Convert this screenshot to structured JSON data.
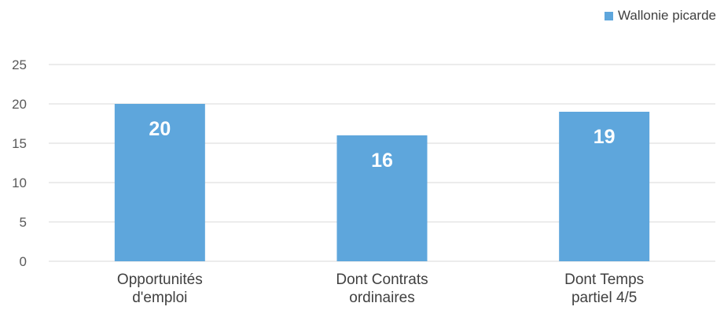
{
  "chart_data": {
    "type": "bar",
    "categories": [
      [
        "Opportunités",
        "d'emploi"
      ],
      [
        "Dont Contrats",
        "ordinaires"
      ],
      [
        "Dont Temps",
        "partiel 4/5"
      ]
    ],
    "series": [
      {
        "name": "Wallonie picarde",
        "values": [
          20,
          16,
          19
        ],
        "color": "#5ea6dc"
      }
    ],
    "data_labels": [
      "20",
      "16",
      "19"
    ],
    "yticks": [
      "0",
      "5",
      "10",
      "15",
      "20",
      "25"
    ],
    "ylim": [
      0,
      25
    ],
    "grid": true,
    "legend": "top-right",
    "gridline_color": "#d9d9d9"
  }
}
